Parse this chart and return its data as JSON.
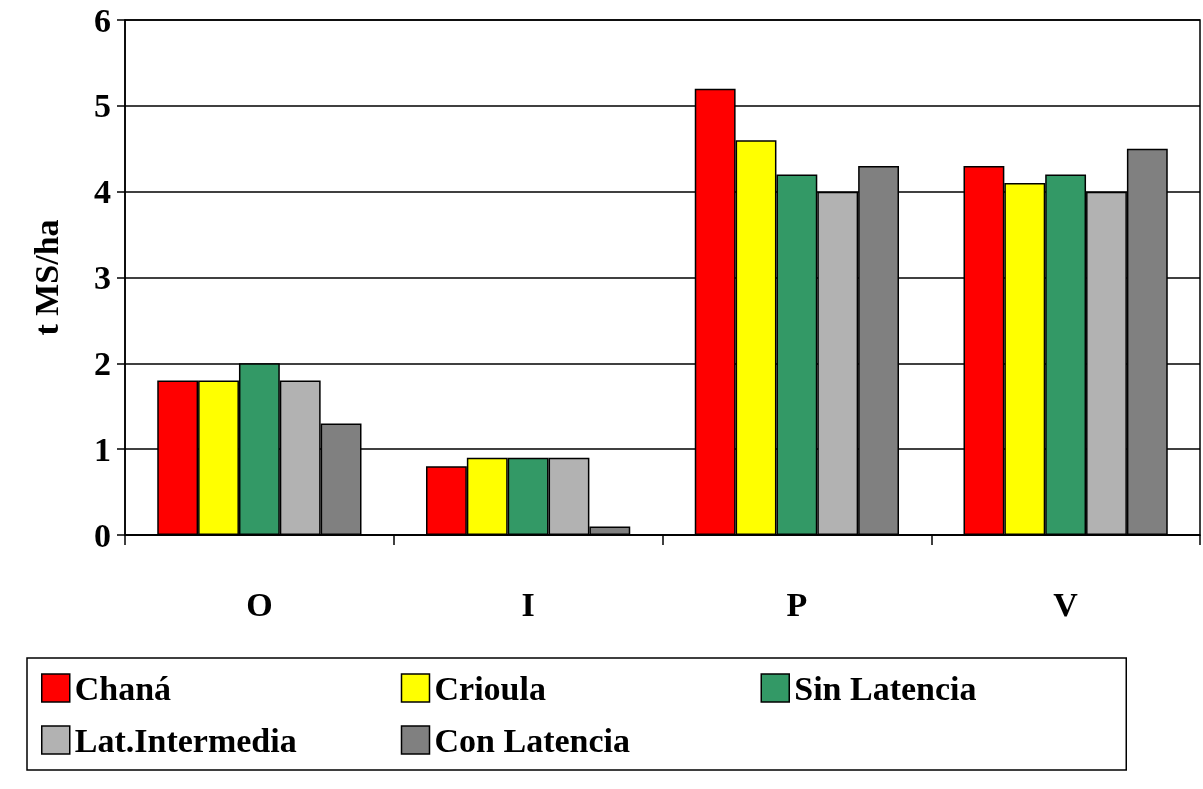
{
  "chart_data": {
    "type": "bar",
    "ylabel": "t MS/ha",
    "categories": [
      "O",
      "I",
      "P",
      "V"
    ],
    "series": [
      {
        "name": "Chaná",
        "color": "#ff0000",
        "values": [
          1.8,
          0.8,
          5.2,
          4.3
        ]
      },
      {
        "name": "Crioula",
        "color": "#ffff00",
        "values": [
          1.8,
          0.9,
          4.6,
          4.1
        ]
      },
      {
        "name": "Sin Latencia",
        "color": "#339966",
        "values": [
          2.0,
          0.9,
          4.2,
          4.2
        ]
      },
      {
        "name": "Lat.Intermedia",
        "color": "#b2b2b2",
        "values": [
          1.8,
          0.9,
          4.0,
          4.0
        ]
      },
      {
        "name": "Con Latencia",
        "color": "#808080",
        "values": [
          1.3,
          0.1,
          4.3,
          4.5
        ]
      }
    ],
    "ylim": [
      0,
      6
    ],
    "yticks": [
      0,
      1,
      2,
      3,
      4,
      5,
      6
    ],
    "grid": "y",
    "legend": "bottom"
  }
}
